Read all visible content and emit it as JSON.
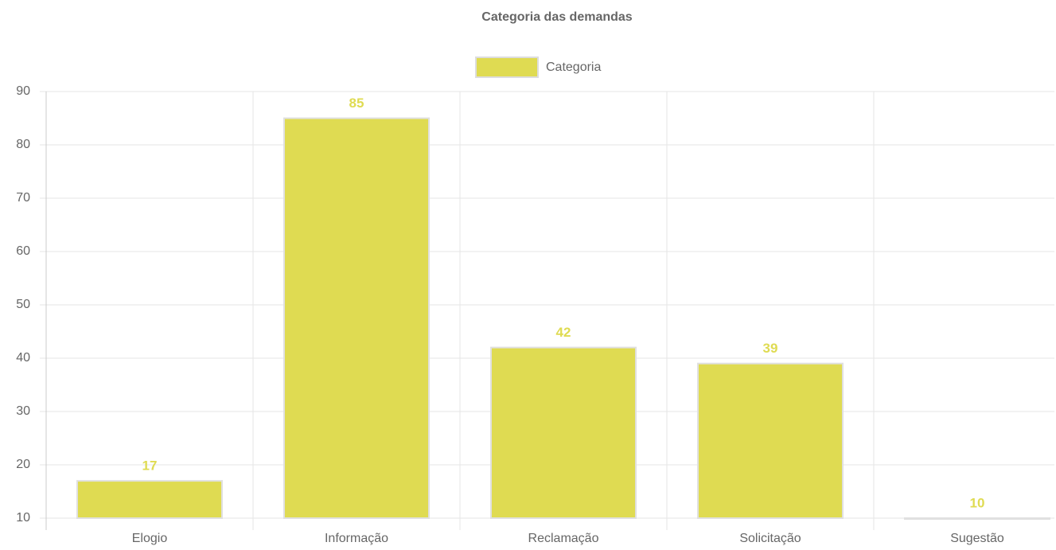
{
  "chart_data": {
    "type": "bar",
    "title": "Categoria das demandas",
    "categories": [
      "Elogio",
      "Informação",
      "Reclamação",
      "Solicitação",
      "Sugestão"
    ],
    "series": [
      {
        "name": "Categoria",
        "color": "#dfdb52",
        "values": [
          17,
          85,
          42,
          39,
          10
        ]
      }
    ],
    "ylim": [
      10,
      90
    ],
    "yticks": [
      10,
      20,
      30,
      40,
      50,
      60,
      70,
      80,
      90
    ],
    "grid": true,
    "legend": "top"
  }
}
